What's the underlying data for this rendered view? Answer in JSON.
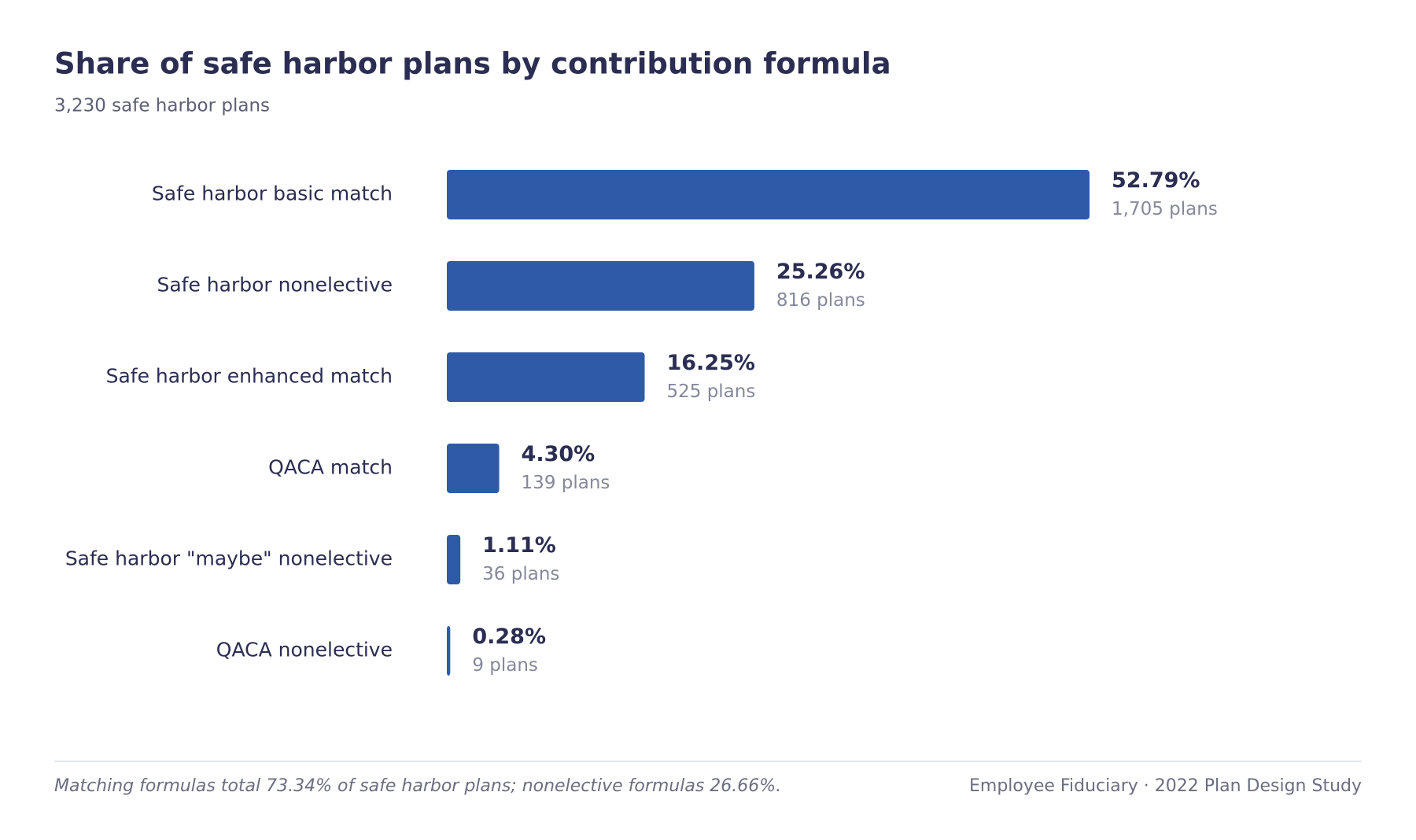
{
  "chart_data": {
    "type": "bar",
    "orientation": "horizontal",
    "title": "Share of safe harbor plans by contribution formula",
    "subtitle": "3,230 safe harbor plans",
    "categories": [
      "Safe harbor basic match",
      "Safe harbor nonelective",
      "Safe harbor enhanced match",
      "QACA match",
      "Safe harbor \"maybe\" nonelective",
      "QACA nonelective"
    ],
    "values": [
      52.79,
      25.26,
      16.25,
      4.3,
      1.11,
      0.28
    ],
    "value_labels": [
      "52.79%",
      "25.26%",
      "16.25%",
      "4.30%",
      "1.11%",
      "0.28%"
    ],
    "count_labels": [
      "1,705 plans",
      "816 plans",
      "525 plans",
      "139 plans",
      "36 plans",
      "9 plans"
    ],
    "color": "#2e5aa8",
    "note": "Matching formulas total 73.34% of safe harbor plans; nonelective formulas 26.66%.",
    "source": "Employee Fiduciary · 2022 Plan Design Study"
  }
}
